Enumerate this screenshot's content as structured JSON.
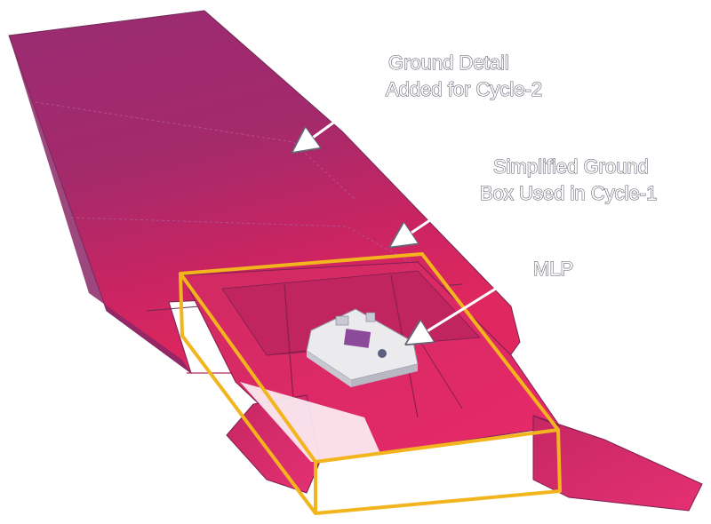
{
  "annotations": {
    "ground_detail": {
      "line1": "Ground Detail",
      "line2": "Added for Cycle-2"
    },
    "simplified_box": {
      "line1": "Simplified Ground",
      "line2": "Box Used in Cycle-1"
    },
    "mlp": {
      "label": "MLP"
    }
  },
  "colors": {
    "ground_top": "#a02a6e",
    "ground_mid": "#d0245e",
    "ground_bright": "#e8286a",
    "box_outline": "#f2b51e",
    "mlp_fill": "#e6e6ea",
    "arrow": "#ffffff"
  }
}
